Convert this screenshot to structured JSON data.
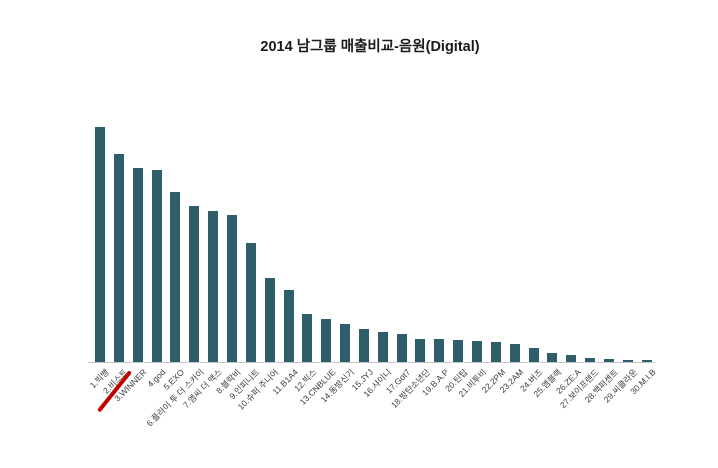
{
  "chart_data": {
    "type": "bar",
    "title": "2014 남그룹 매출비교-음원(Digital)",
    "categories": [
      "1.빅뱅",
      "2.비스트",
      "3.WINNER",
      "4.god",
      "5.EXO",
      "6.플라이 투 더 스카이",
      "7.엠씨 더 맥스",
      "8.블락비",
      "9.인피니트",
      "10.슈퍼 주니어",
      "11.B1A4",
      "12.빅스",
      "13.CNBLUE",
      "14.동방신기",
      "15.JYJ",
      "16.샤이니",
      "17.Got7",
      "18.방탄소년단",
      "19.B.A.P",
      "20.틴탑",
      "21.비투비",
      "22.2PM",
      "23.2AM",
      "24.버즈",
      "25.엠블랙",
      "26.ZE:A",
      "27.보이프렌드",
      "28.백퍼센트",
      "29.씨클라운",
      "30.M.I.B"
    ],
    "values": [
      235,
      208,
      194,
      192,
      170,
      156,
      151,
      147,
      119,
      84,
      72,
      48,
      43,
      38,
      33,
      30,
      28,
      23,
      23,
      22,
      21,
      20,
      18,
      14,
      9,
      7,
      4.5,
      3.5,
      2.5,
      2
    ],
    "value_unit": "relative (y-axis unlabeled in source image)",
    "ylim": [
      0,
      250
    ],
    "xlabel": "",
    "ylabel": "",
    "grid": false,
    "legend": false,
    "x_labels_rotation_deg": -45,
    "colors": {
      "bar": "#2E5E6A",
      "axis_line": "#C6C6C6",
      "label_text": "#3D3D3D",
      "title_text": "#1A1A1A",
      "annotation_red": "#C00000"
    },
    "annotation": {
      "type": "hand-drawn-underline",
      "target_category": "2.비스트",
      "color": "#C00000",
      "description": "thick red diagonal underline beneath the 2nd x-axis label"
    }
  }
}
